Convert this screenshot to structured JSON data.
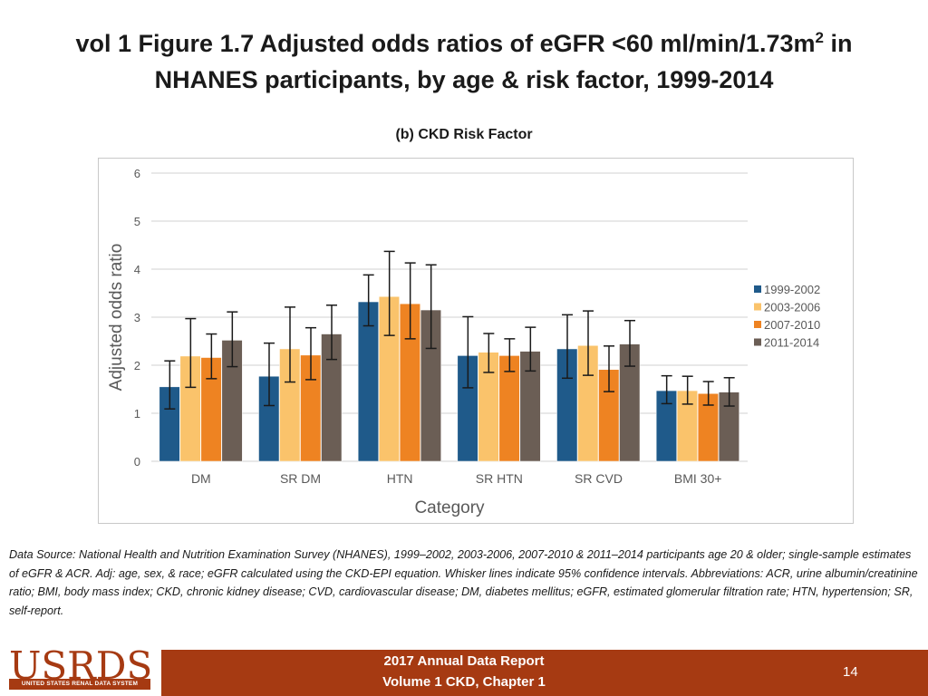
{
  "slide": {
    "title_part1": "vol 1 Figure 1.7 Adjusted odds ratios of eGFR <60 ml/min/1.73m",
    "title_sup": "2",
    "title_part2": " in",
    "title_line2": "NHANES participants, by age & risk factor, 1999-2014",
    "footnote": "Data Source: National Health and Nutrition Examination Survey (NHANES), 1999–2002, 2003-2006, 2007-2010 & 2011–2014 participants age 20 & older; single-sample estimates of eGFR & ACR. Adj: age, sex, & race; eGFR calculated using the CKD-EPI equation. Whisker lines indicate 95% confidence intervals. Abbreviations: ACR, urine albumin/creatinine ratio; BMI, body mass index; CKD, chronic kidney disease; CVD, cardiovascular disease; DM, diabetes mellitus; eGFR, estimated glomerular filtration rate; HTN, hypertension; SR, self-report."
  },
  "footer": {
    "logo": "USRDS",
    "logo_sub": "UNITED STATES RENAL DATA SYSTEM",
    "line1": "2017 Annual Data Report",
    "line2": "Volume 1 CKD, Chapter 1",
    "page": "14"
  },
  "chart_data": {
    "type": "bar",
    "title": "(b) CKD Risk Factor",
    "xlabel": "Category",
    "ylabel": "Adjusted odds ratio",
    "ylim": [
      0,
      6
    ],
    "yticks": [
      0,
      1,
      2,
      3,
      4,
      5,
      6
    ],
    "grid": true,
    "legend_position": "right",
    "categories": [
      "DM",
      "SR DM",
      "HTN",
      "SR HTN",
      "SR CVD",
      "BMI 30+"
    ],
    "series": [
      {
        "name": "1999-2002",
        "color": "#1f5a8a",
        "values": [
          1.55,
          1.77,
          3.32,
          2.2,
          2.34,
          1.47
        ],
        "ci_low": [
          1.09,
          1.16,
          2.82,
          1.53,
          1.73,
          1.2
        ],
        "ci_high": [
          2.09,
          2.46,
          3.88,
          3.01,
          3.05,
          1.78
        ]
      },
      {
        "name": "2003-2006",
        "color": "#fac36b",
        "values": [
          2.19,
          2.34,
          3.43,
          2.27,
          2.41,
          1.47
        ],
        "ci_low": [
          1.54,
          1.65,
          2.62,
          1.85,
          1.79,
          1.19
        ],
        "ci_high": [
          2.97,
          3.21,
          4.37,
          2.66,
          3.13,
          1.77
        ]
      },
      {
        "name": "2007-2010",
        "color": "#ee8322",
        "values": [
          2.16,
          2.21,
          3.28,
          2.2,
          1.91,
          1.41
        ],
        "ci_low": [
          1.72,
          1.7,
          2.55,
          1.87,
          1.45,
          1.17
        ],
        "ci_high": [
          2.65,
          2.78,
          4.13,
          2.55,
          2.4,
          1.66
        ]
      },
      {
        "name": "2011-2014",
        "color": "#6b5e55",
        "values": [
          2.52,
          2.65,
          3.15,
          2.29,
          2.44,
          1.44
        ],
        "ci_low": [
          1.97,
          2.12,
          2.35,
          1.88,
          1.98,
          1.15
        ],
        "ci_high": [
          3.11,
          3.25,
          4.09,
          2.79,
          2.93,
          1.74
        ]
      }
    ]
  }
}
